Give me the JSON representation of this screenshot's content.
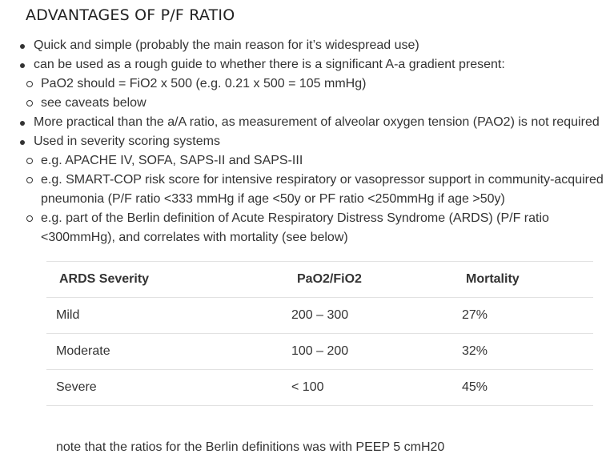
{
  "heading": "ADVANTAGES OF P/F RATIO",
  "list": {
    "b1": "Quick and simple (probably the main reason for it’s widespread use)",
    "b2": "can be used as a rough guide to whether there is a significant A-a gradient present:",
    "b2_sub1": "PaO2 should = FiO2 x 500 (e.g. 0.21 x 500 = 105 mmHg)",
    "b2_sub2": "see caveats below",
    "b3": "More practical than the a/A ratio, as measurement of alveolar oxygen tension (PAO2) is not required",
    "b4": "Used in severity scoring systems",
    "b4_sub1": "e.g. APACHE IV, SOFA, SAPS-II and SAPS-III",
    "b4_sub2_line1": "e.g. SMART-COP risk score for intensive respiratory or vasopressor support in community-acquired",
    "b4_sub2_line2": "pneumonia (P/F ratio <333 mmHg if age <50y or PF ratio <250mmHg if age >50y)",
    "b4_sub3_line1": "e.g. part of the Berlin definition of Acute Respiratory Distress Syndrome (ARDS) (P/F ratio",
    "b4_sub3_line2": "<300mmHg), and correlates with mortality (see below)"
  },
  "table": {
    "headers": [
      "ARDS Severity",
      "PaO2/FiO2",
      "Mortality"
    ],
    "rows": [
      [
        "Mild",
        "200 – 300",
        "27%"
      ],
      [
        "Moderate",
        "100 – 200",
        "32%"
      ],
      [
        "Severe",
        "< 100",
        "45%"
      ]
    ]
  },
  "note": "note that the ratios for the Berlin definitions was with PEEP 5 cmH20"
}
